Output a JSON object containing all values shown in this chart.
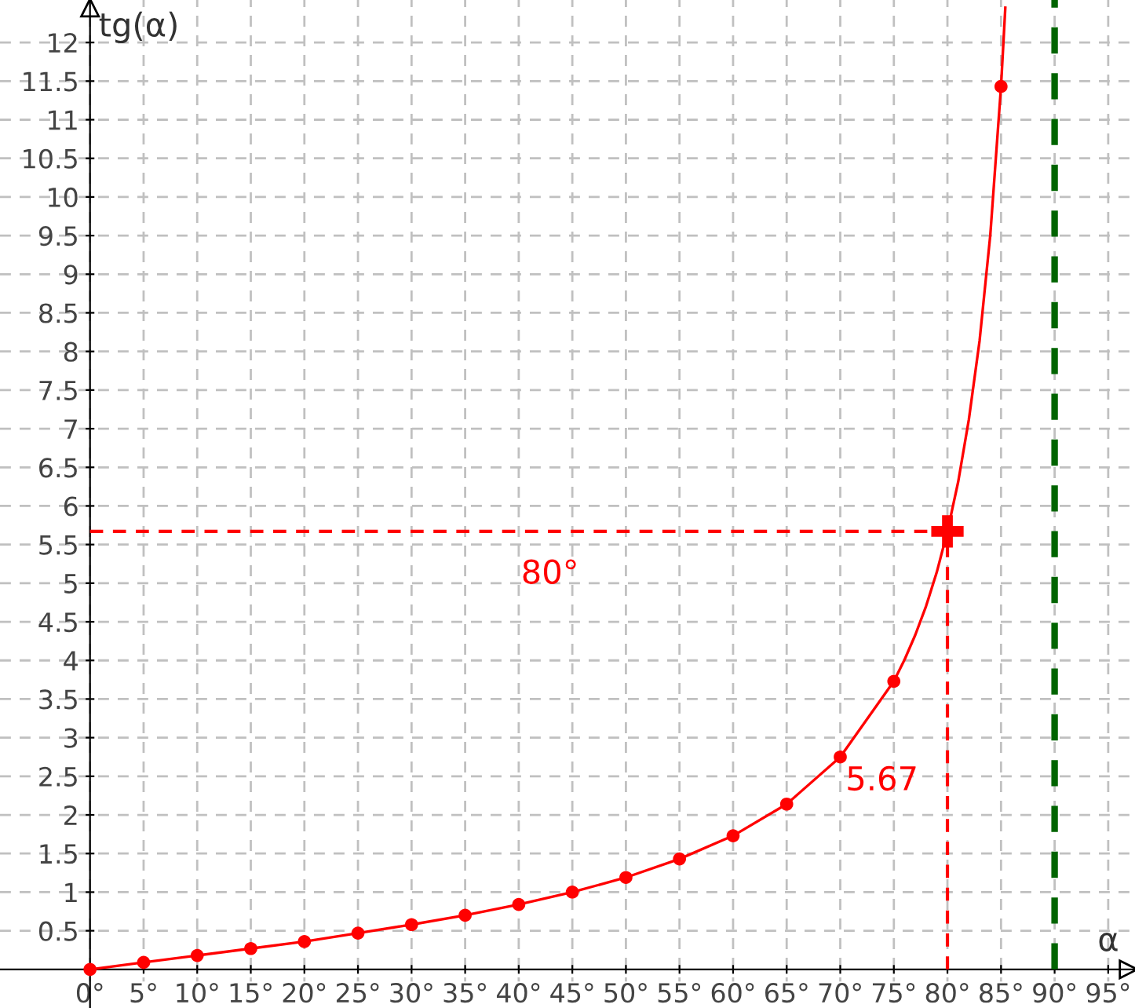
{
  "chart_data": {
    "type": "line",
    "xlabel": "α",
    "ylabel": "tg(α)",
    "xlim": [
      -8.4,
      97.5
    ],
    "ylim": [
      -0.5,
      12.55
    ],
    "xticks": [
      {
        "value": 0,
        "label": "0°"
      },
      {
        "value": 5,
        "label": "5°"
      },
      {
        "value": 10,
        "label": "10°"
      },
      {
        "value": 15,
        "label": "15°"
      },
      {
        "value": 20,
        "label": "20°"
      },
      {
        "value": 25,
        "label": "25°"
      },
      {
        "value": 30,
        "label": "30°"
      },
      {
        "value": 35,
        "label": "35°"
      },
      {
        "value": 40,
        "label": "40°"
      },
      {
        "value": 45,
        "label": "45°"
      },
      {
        "value": 50,
        "label": "50°"
      },
      {
        "value": 55,
        "label": "55°"
      },
      {
        "value": 60,
        "label": "60°"
      },
      {
        "value": 65,
        "label": "65°"
      },
      {
        "value": 70,
        "label": "70°"
      },
      {
        "value": 75,
        "label": "75°"
      },
      {
        "value": 80,
        "label": "80°"
      },
      {
        "value": 85,
        "label": "85°"
      },
      {
        "value": 90,
        "label": "90°"
      },
      {
        "value": 95,
        "label": "95°"
      }
    ],
    "yticks": [
      0.5,
      1,
      1.5,
      2,
      2.5,
      3,
      3.5,
      4,
      4.5,
      5,
      5.5,
      6,
      6.5,
      7,
      7.5,
      8,
      8.5,
      9,
      9.5,
      10,
      10.5,
      11,
      11.5,
      12
    ],
    "grid": true,
    "series": [
      {
        "color": "#ff0000",
        "line_style": "solid",
        "x": [
          0,
          5,
          10,
          15,
          20,
          25,
          30,
          35,
          40,
          45,
          50,
          55,
          60,
          65,
          70,
          75,
          76,
          77,
          78,
          79,
          80,
          81,
          82,
          83,
          84,
          85,
          85.4
        ],
        "values": [
          0,
          0.09,
          0.18,
          0.27,
          0.36,
          0.47,
          0.58,
          0.7,
          0.84,
          1,
          1.19,
          1.43,
          1.73,
          2.14,
          2.75,
          3.73,
          4.01,
          4.33,
          4.7,
          5.14,
          5.67,
          6.31,
          7.12,
          8.14,
          9.51,
          11.43,
          12.45
        ]
      },
      {
        "type": "scatter",
        "color": "#ff0000",
        "marker": "circle",
        "x": [
          0,
          5,
          10,
          15,
          20,
          25,
          30,
          35,
          40,
          45,
          50,
          55,
          60,
          65,
          70,
          75,
          85
        ],
        "values": [
          0,
          0.09,
          0.18,
          0.27,
          0.36,
          0.47,
          0.58,
          0.7,
          0.84,
          1,
          1.19,
          1.43,
          1.73,
          2.14,
          2.75,
          3.73,
          11.43
        ]
      },
      {
        "color": "#ff0000",
        "line_style": "dashed",
        "x": [
          0,
          80
        ],
        "values": [
          5.67,
          5.67
        ]
      },
      {
        "color": "#ff0000",
        "line_style": "dashed",
        "x": [
          80,
          80
        ],
        "values": [
          0,
          5.67
        ]
      },
      {
        "type": "scatter",
        "color": "#ff0000",
        "marker": "cross",
        "x": [
          80
        ],
        "values": [
          5.67
        ]
      }
    ],
    "ref_lines": [
      {
        "axis": "x",
        "value": 90,
        "color": "#006400",
        "line_style": "dashed"
      }
    ],
    "annotations": [
      "80°",
      "5.67"
    ]
  }
}
